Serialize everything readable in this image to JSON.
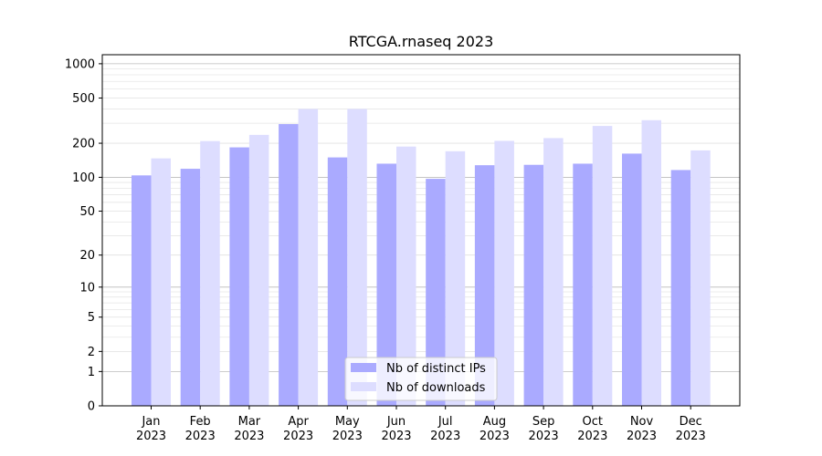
{
  "chart_data": {
    "type": "bar",
    "title": "RTCGA.rnaseq 2023",
    "xlabel": "",
    "ylabel": "",
    "yscale": "log1p",
    "ylim": [
      0,
      1200
    ],
    "y_ticks": [
      {
        "value": 0,
        "label": "0"
      },
      {
        "value": 1,
        "label": "1"
      },
      {
        "value": 2,
        "label": "2"
      },
      {
        "value": 5,
        "label": "5"
      },
      {
        "value": 10,
        "label": "10"
      },
      {
        "value": 20,
        "label": "20"
      },
      {
        "value": 50,
        "label": "50"
      },
      {
        "value": 100,
        "label": "100"
      },
      {
        "value": 200,
        "label": "200"
      },
      {
        "value": 500,
        "label": "500"
      },
      {
        "value": 1000,
        "label": "1000"
      }
    ],
    "categories": [
      {
        "month": "Jan",
        "year": "2023"
      },
      {
        "month": "Feb",
        "year": "2023"
      },
      {
        "month": "Mar",
        "year": "2023"
      },
      {
        "month": "Apr",
        "year": "2023"
      },
      {
        "month": "May",
        "year": "2023"
      },
      {
        "month": "Jun",
        "year": "2023"
      },
      {
        "month": "Jul",
        "year": "2023"
      },
      {
        "month": "Aug",
        "year": "2023"
      },
      {
        "month": "Sep",
        "year": "2023"
      },
      {
        "month": "Oct",
        "year": "2023"
      },
      {
        "month": "Nov",
        "year": "2023"
      },
      {
        "month": "Dec",
        "year": "2023"
      }
    ],
    "series": [
      {
        "name": "Nb of distinct IPs",
        "color": "#aaaaff",
        "values": [
          104,
          119,
          184,
          295,
          150,
          132,
          97,
          128,
          129,
          132,
          162,
          116
        ]
      },
      {
        "name": "Nb of downloads",
        "color": "#ddddff",
        "values": [
          147,
          209,
          237,
          400,
          400,
          187,
          170,
          210,
          222,
          284,
          319,
          173
        ]
      }
    ],
    "grid": true,
    "legend_position": "bottom-center"
  }
}
